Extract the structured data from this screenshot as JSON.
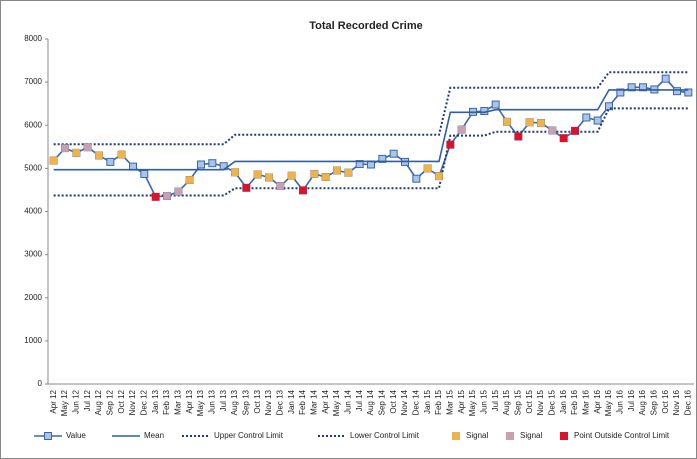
{
  "chart_data": {
    "type": "line",
    "title": "Total Recorded Crime",
    "categories": [
      "Apr 12",
      "May 12",
      "Jun 12",
      "Jul 12",
      "Aug 12",
      "Sep 12",
      "Oct 12",
      "Nov 12",
      "Dec 12",
      "Jan 13",
      "Feb 13",
      "Mar 13",
      "Apr 13",
      "May 13",
      "Jun 13",
      "Jul 13",
      "Aug 13",
      "Sep 13",
      "Oct 13",
      "Nov 13",
      "Dec 13",
      "Jan 14",
      "Feb 14",
      "Mar 14",
      "Apr 14",
      "May 14",
      "Jun 14",
      "Jul 14",
      "Aug 14",
      "Sep 14",
      "Oct 14",
      "Nov 14",
      "Dec 14",
      "Jan 15",
      "Feb 15",
      "Mar 15",
      "Apr 15",
      "May 15",
      "Jun 15",
      "Jul 15",
      "Aug 15",
      "Sep 15",
      "Oct 15",
      "Nov 15",
      "Dec 15",
      "Jan 16",
      "Feb 16",
      "Mar 16",
      "Apr 16",
      "May 16",
      "Jun 16",
      "Jul 16",
      "Aug 16",
      "Sep 16",
      "Oct 16",
      "Nov 16",
      "Dec 16"
    ],
    "ylim": [
      0,
      8000
    ],
    "yticks": [
      0,
      1000,
      2000,
      3000,
      4000,
      5000,
      6000,
      7000,
      8000
    ],
    "grid": false,
    "series": [
      {
        "name": "Value",
        "color": "#3b66a8",
        "line_style": "solid",
        "marker": "square",
        "values": [
          5180,
          5470,
          5360,
          5490,
          5300,
          5150,
          5320,
          5040,
          4870,
          4340,
          4360,
          4460,
          4730,
          5090,
          5120,
          5050,
          4910,
          4550,
          4860,
          4790,
          4590,
          4830,
          4490,
          4870,
          4800,
          4950,
          4900,
          5100,
          5090,
          5220,
          5340,
          5150,
          4760,
          5000,
          4820,
          5550,
          5900,
          6310,
          6330,
          6480,
          6080,
          5740,
          6070,
          6050,
          5880,
          5700,
          5870,
          6180,
          6110,
          6440,
          6760,
          6880,
          6880,
          6830,
          7080,
          6790,
          6760
        ]
      },
      {
        "name": "Mean",
        "color": "#2f5f9e",
        "line_style": "solid",
        "marker": "none",
        "values": [
          4970,
          4970,
          4970,
          4970,
          4970,
          4970,
          4970,
          4970,
          4970,
          4970,
          4970,
          4970,
          4970,
          4970,
          4970,
          4970,
          5160,
          5160,
          5160,
          5160,
          5160,
          5160,
          5160,
          5160,
          5160,
          5160,
          5160,
          5160,
          5160,
          5160,
          5160,
          5160,
          5160,
          5160,
          5160,
          6300,
          6300,
          6300,
          6300,
          6360,
          6360,
          6360,
          6360,
          6360,
          6360,
          6360,
          6360,
          6360,
          6360,
          6820,
          6820,
          6820,
          6820,
          6820,
          6820,
          6820,
          6820
        ]
      },
      {
        "name": "Upper Control Limit",
        "color": "#1f3a6e",
        "line_style": "dotted",
        "marker": "none",
        "values": [
          5560,
          5560,
          5560,
          5560,
          5560,
          5560,
          5560,
          5560,
          5560,
          5560,
          5560,
          5560,
          5560,
          5560,
          5560,
          5560,
          5780,
          5780,
          5780,
          5780,
          5780,
          5780,
          5780,
          5780,
          5780,
          5780,
          5780,
          5780,
          5780,
          5780,
          5780,
          5780,
          5780,
          5780,
          5780,
          6870,
          6870,
          6870,
          6870,
          6870,
          6870,
          6870,
          6870,
          6870,
          6870,
          6870,
          6870,
          6870,
          6870,
          7230,
          7230,
          7230,
          7230,
          7230,
          7230,
          7230,
          7230
        ]
      },
      {
        "name": "Lower Control Limit",
        "color": "#1f3a6e",
        "line_style": "dotted",
        "marker": "none",
        "values": [
          4370,
          4370,
          4370,
          4370,
          4370,
          4370,
          4370,
          4370,
          4370,
          4370,
          4370,
          4370,
          4370,
          4370,
          4370,
          4370,
          4540,
          4540,
          4540,
          4540,
          4540,
          4540,
          4540,
          4540,
          4540,
          4540,
          4540,
          4540,
          4540,
          4540,
          4540,
          4540,
          4540,
          4540,
          4540,
          5760,
          5760,
          5760,
          5760,
          5850,
          5850,
          5850,
          5850,
          5850,
          5850,
          5850,
          5850,
          5850,
          5850,
          6390,
          6390,
          6390,
          6390,
          6390,
          6390,
          6390,
          6390
        ]
      },
      {
        "name": "Signal",
        "color": "#f0b24a",
        "line_style": "none",
        "marker": "square",
        "values": [
          5180,
          null,
          5360,
          null,
          5300,
          null,
          5320,
          null,
          null,
          null,
          null,
          null,
          4730,
          null,
          null,
          null,
          4910,
          null,
          4860,
          4790,
          null,
          4830,
          null,
          4870,
          4800,
          4950,
          4900,
          null,
          null,
          null,
          null,
          null,
          null,
          5000,
          4820,
          null,
          null,
          null,
          null,
          null,
          6080,
          null,
          6070,
          6050,
          null,
          null,
          null,
          null,
          null,
          null,
          null,
          null,
          null,
          null,
          null,
          null,
          null
        ]
      },
      {
        "name": "Signal",
        "color": "#c9a0b0",
        "line_style": "none",
        "marker": "square",
        "values": [
          null,
          5470,
          null,
          5490,
          null,
          null,
          null,
          null,
          null,
          null,
          4360,
          4460,
          null,
          null,
          null,
          null,
          null,
          null,
          null,
          null,
          4590,
          null,
          null,
          null,
          null,
          null,
          null,
          null,
          null,
          null,
          null,
          null,
          null,
          null,
          null,
          null,
          5900,
          null,
          null,
          null,
          null,
          null,
          null,
          null,
          5880,
          null,
          null,
          null,
          null,
          null,
          null,
          null,
          null,
          null,
          null,
          null,
          null
        ]
      },
      {
        "name": "Point Outside Control Limit",
        "color": "#e0102a",
        "line_style": "none",
        "marker": "square",
        "values": [
          null,
          null,
          null,
          null,
          null,
          null,
          null,
          null,
          null,
          4340,
          null,
          null,
          null,
          null,
          null,
          null,
          null,
          4550,
          null,
          null,
          null,
          null,
          4490,
          null,
          null,
          null,
          null,
          null,
          null,
          null,
          null,
          null,
          null,
          null,
          null,
          5550,
          null,
          null,
          null,
          null,
          null,
          5740,
          null,
          null,
          null,
          5700,
          5870,
          null,
          null,
          null,
          null,
          null,
          null,
          null,
          null,
          null,
          null
        ]
      }
    ]
  }
}
